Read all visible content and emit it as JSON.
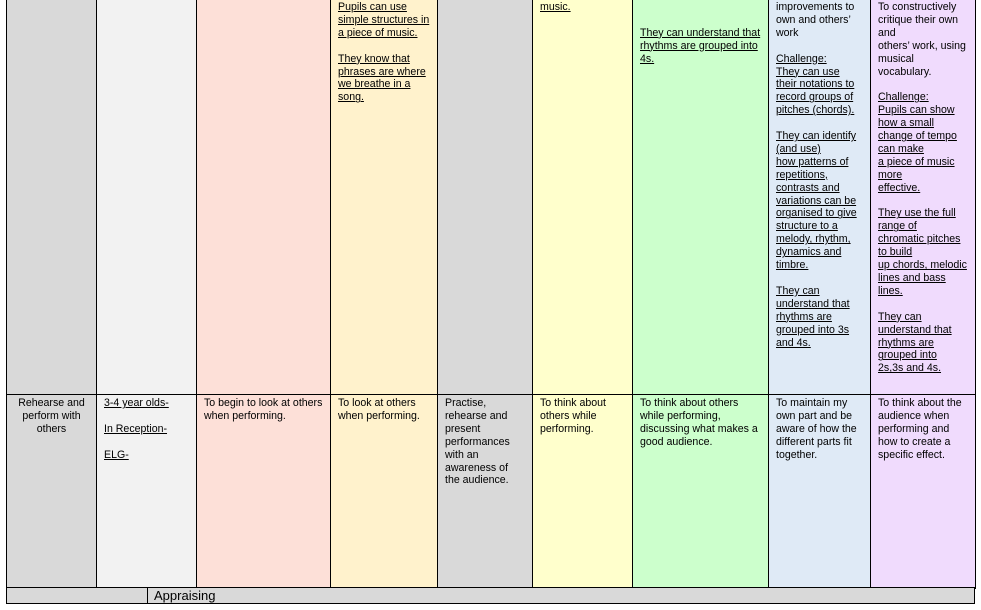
{
  "rows": [
    {
      "cells": [
        [],
        [],
        [],
        [
          {
            "text": "Pupils can use simple structures in a piece of music.",
            "u": true
          },
          {
            "text": "They know that phrases are where we breathe in a song.",
            "u": true
          }
        ],
        [],
        [
          {
            "text": "music.",
            "u": true
          }
        ],
        [
          {
            "text": "",
            "u": false
          },
          {
            "text": "They can understand that rhythms are grouped into 4s.",
            "u": true
          }
        ],
        [
          {
            "text": "improvements to own and others’ work",
            "u": false
          },
          {
            "text": "Challenge:\nThey can use their notations to record groups of pitches (chords).",
            "u": true
          },
          {
            "text": "They can identify (and use)\nhow patterns of repetitions, contrasts and variations can be organised to give structure to a melody, rhythm, dynamics and timbre.",
            "u": true
          },
          {
            "text": "They can understand that rhythms are grouped into 3s and 4s.",
            "u": true
          }
        ],
        [
          {
            "text": "To constructively critique their own and\nothers’ work, using musical vocabulary.",
            "u": false
          },
          {
            "text": "Challenge:\nPupils can show how a small change of tempo can make\na piece of music more\neffective.",
            "u": true
          },
          {
            "text": "They use the full range of\nchromatic pitches to build\nup chords, melodic lines and bass lines.",
            "u": true
          },
          {
            "text": "They can understand that rhythms are grouped into\n2s,3s and 4s.",
            "u": true
          }
        ]
      ]
    },
    {
      "cells": [
        [
          {
            "text": "Rehearse and perform with others",
            "u": false
          }
        ],
        [
          {
            "text": "3-4 year olds-",
            "u": true
          },
          {
            "text": "In Reception-",
            "u": true
          },
          {
            "text": "ELG-",
            "u": true
          }
        ],
        [
          {
            "text": "To begin to look at others when performing.",
            "u": false
          }
        ],
        [
          {
            "text": "To look at others when performing.",
            "u": false
          }
        ],
        [
          {
            "text": "Practise, rehearse and present performances with an awareness of the audience.",
            "u": false
          }
        ],
        [
          {
            "text": "To think about others while performing.",
            "u": false
          }
        ],
        [
          {
            "text": "To think about others while performing, discussing what makes a good audience.",
            "u": false
          }
        ],
        [
          {
            "text": "To maintain my own part and be aware of how the different parts fit together.",
            "u": false
          }
        ],
        [
          {
            "text": "To think about the audience when performing and how to create a specific effect.",
            "u": false
          }
        ]
      ]
    }
  ],
  "footer": {
    "section_label": "Appraising"
  },
  "colors": {
    "col1": "#d9d9d9",
    "col2": "#f2f2f2",
    "col3": "#fde0d8",
    "col4": "#fff2cc",
    "col5": "#d9d9d9",
    "col6": "#ffffcc",
    "col7": "#ccffcc",
    "col8": "#dfeaf6",
    "col9": "#f0dbfd"
  }
}
